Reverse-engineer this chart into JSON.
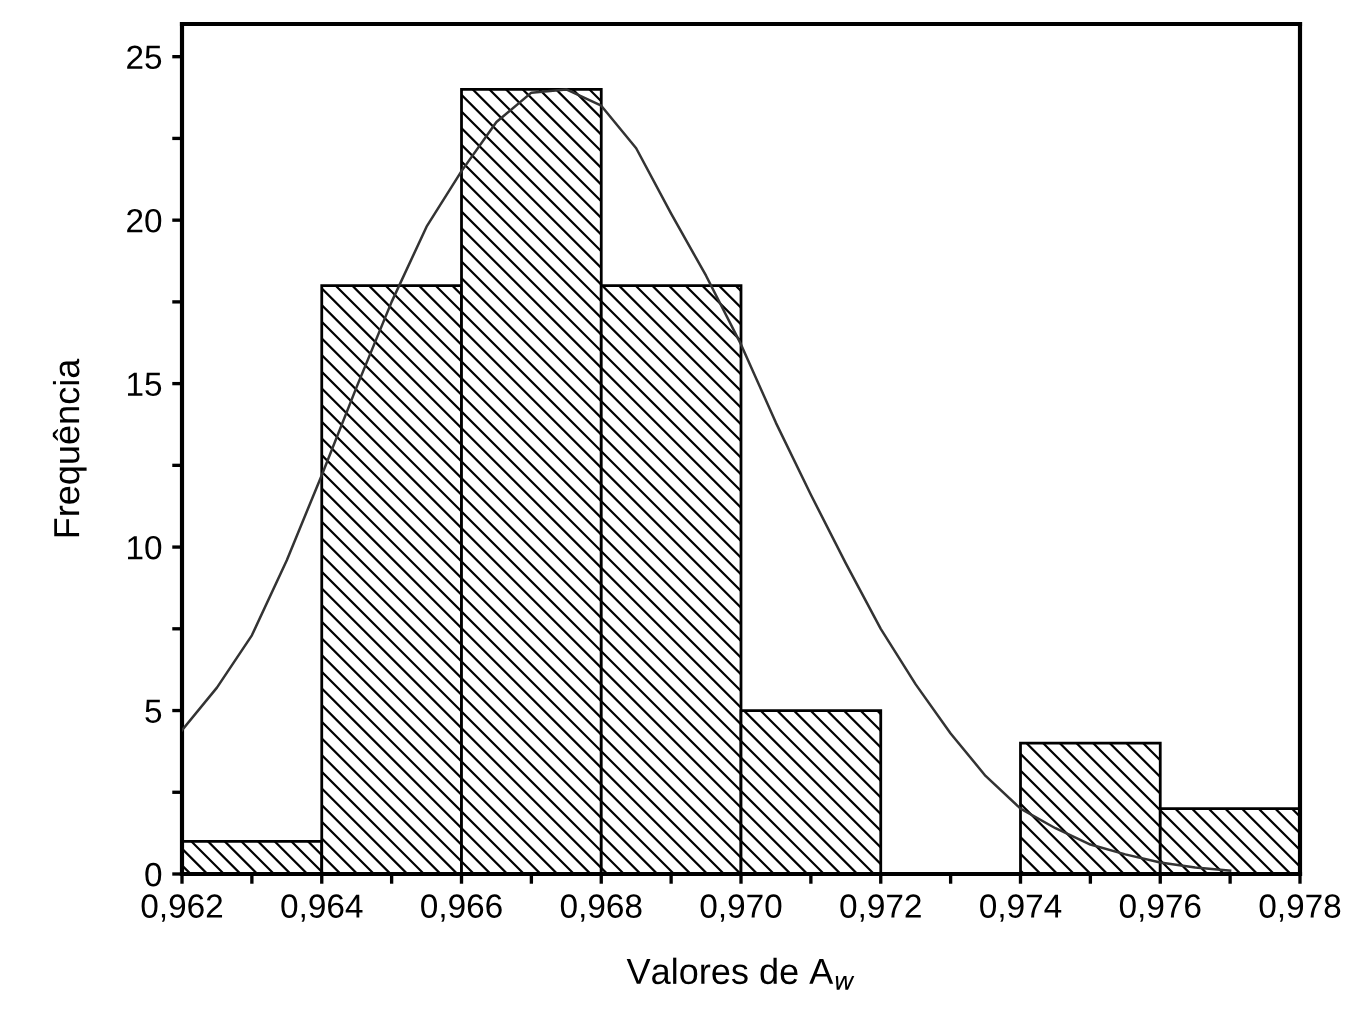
{
  "chart_data": {
    "type": "histogram",
    "xlabel": "Valores de A$_{w}$",
    "ylabel": "Frequência",
    "bins": [
      0.962,
      0.964,
      0.966,
      0.968,
      0.97,
      0.972,
      0.974,
      0.976,
      0.978
    ],
    "values": [
      1,
      18,
      24,
      18,
      5,
      0,
      4,
      2
    ],
    "color": "#000000",
    "series": [
      {
        "type": "line",
        "color": "#333333",
        "x": [
          0.962,
          0.9625,
          0.963,
          0.9635,
          0.964,
          0.9645,
          0.965,
          0.9655,
          0.966,
          0.9665,
          0.967,
          0.9675,
          0.968,
          0.9685,
          0.969,
          0.9695,
          0.97,
          0.9705,
          0.971,
          0.9715,
          0.972,
          0.9725,
          0.973,
          0.9735,
          0.974,
          0.9745,
          0.975,
          0.9755,
          0.976,
          0.9765,
          0.977
        ],
        "values": [
          4.4,
          5.7,
          7.3,
          9.6,
          12.2,
          14.9,
          17.5,
          19.8,
          21.5,
          23,
          23.9,
          24.0,
          23.5,
          22.2,
          20.2,
          18.3,
          16.2,
          13.8,
          11.6,
          9.5,
          7.5,
          5.8,
          4.3,
          3.0,
          2.0,
          1.4,
          0.9,
          0.6,
          0.35,
          0.2,
          0.1
        ]
      }
    ],
    "xlim": [
      0.962,
      0.978
    ],
    "ylim": [
      0,
      26
    ],
    "xticks": [
      {
        "value": 0.962,
        "label": "0,962"
      },
      {
        "value": 0.963,
        "label": null
      },
      {
        "value": 0.964,
        "label": "0,964"
      },
      {
        "value": 0.965,
        "label": null
      },
      {
        "value": 0.966,
        "label": "0,966"
      },
      {
        "value": 0.967,
        "label": null
      },
      {
        "value": 0.968,
        "label": "0,968"
      },
      {
        "value": 0.969,
        "label": null
      },
      {
        "value": 0.97,
        "label": "0,970"
      },
      {
        "value": 0.971,
        "label": null
      },
      {
        "value": 0.972,
        "label": "0,972"
      },
      {
        "value": 0.973,
        "label": null
      },
      {
        "value": 0.974,
        "label": "0,974"
      },
      {
        "value": 0.975,
        "label": null
      },
      {
        "value": 0.976,
        "label": "0,976"
      },
      {
        "value": 0.977,
        "label": null
      },
      {
        "value": 0.978,
        "label": "0,978"
      }
    ],
    "yticks": [
      0,
      {
        "value": 2.5,
        "label": null
      },
      5,
      {
        "value": 7.5,
        "label": null
      },
      10,
      {
        "value": 12.5,
        "label": null
      },
      15,
      {
        "value": 17.5,
        "label": null
      },
      20,
      {
        "value": 22.5,
        "label": null
      },
      25
    ],
    "grid": false,
    "legend": false
  }
}
